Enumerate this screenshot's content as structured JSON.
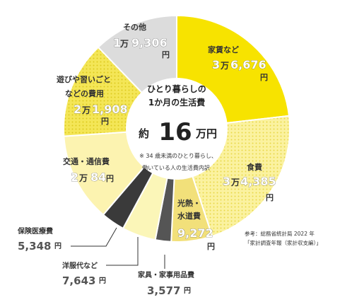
{
  "chart_data": {
    "type": "pie",
    "variant": "donut",
    "center": {
      "line1": "ひとり暮らしの",
      "line2": "1か月の生活費",
      "approx": "約",
      "amount": "16",
      "unit": "万円",
      "note_line1": "※ 34 歳未満のひとり暮らし、",
      "note_line2": "働いている人の生活費内訳"
    },
    "slices": [
      {
        "label": "家賃など",
        "value": 36676,
        "man": "3",
        "rest": "6,676",
        "color": "#f7e300"
      },
      {
        "label": "食費",
        "value": 34385,
        "man": "3",
        "rest": "4,385",
        "color": "#f9ef7a"
      },
      {
        "label": "光熱・水道費",
        "value": 9272,
        "man": "",
        "rest": "9,272",
        "color": "#f2e07a"
      },
      {
        "label": "家具・家事用品費",
        "value": 3577,
        "man": "",
        "rest": "3,577",
        "color": "#555555"
      },
      {
        "label": "洋服代など",
        "value": 7643,
        "man": "",
        "rest": "7,643",
        "color": "#fbf6b8"
      },
      {
        "label": "保険医療費",
        "value": 5348,
        "man": "",
        "rest": "5,348",
        "color": "#3a3a3a"
      },
      {
        "label": "交通・通信費",
        "value": 20084,
        "man": "2",
        "rest": "84",
        "color": "#fcf3b0"
      },
      {
        "label": "遊びや習いごとなどの費用",
        "value": 21908,
        "man": "2",
        "rest": "1,908",
        "color": "#f6ea6a"
      },
      {
        "label": "その他",
        "value": 19306,
        "man": "1",
        "rest": "9,306",
        "color": "#dcdcdc"
      }
    ],
    "labels": {
      "man_unit": "万",
      "yen_unit": "円",
      "other": "その他",
      "hobby_line1": "遊びや習いごと",
      "hobby_line2": "などの費用",
      "utility_line1": "光熱・",
      "utility_line2": "水道費"
    }
  },
  "source": {
    "line1": "参考：総務省統計局 2022 年",
    "line2": "「家計調査年報（家計収支編）」"
  }
}
